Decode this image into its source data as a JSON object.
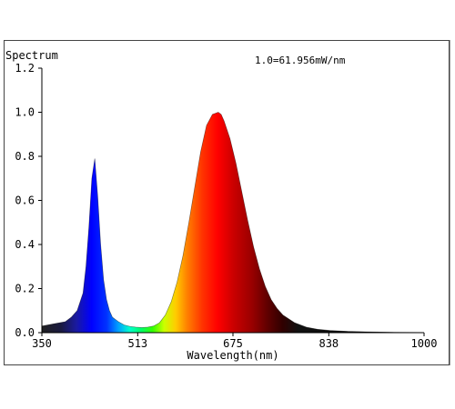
{
  "chart_data": {
    "type": "area",
    "title": "Spectrum",
    "scale_note": "1.0=61.956mW/nm",
    "xlabel": "Wavelength(nm)",
    "ylabel": "Spectrum",
    "xlim": [
      350,
      1000
    ],
    "ylim": [
      0,
      1.2
    ],
    "x_ticks": [
      "350",
      "513",
      "675",
      "838",
      "1000"
    ],
    "y_ticks": [
      "0.0",
      "0.2",
      "0.4",
      "0.6",
      "0.8",
      "1.0",
      "1.2"
    ],
    "grid": false,
    "x": [
      350,
      370,
      390,
      400,
      410,
      420,
      425,
      430,
      435,
      440,
      445,
      450,
      455,
      460,
      465,
      470,
      480,
      490,
      500,
      510,
      520,
      530,
      540,
      550,
      560,
      570,
      580,
      590,
      600,
      610,
      620,
      630,
      640,
      650,
      655,
      660,
      670,
      680,
      690,
      700,
      710,
      720,
      730,
      740,
      750,
      760,
      780,
      800,
      820,
      840,
      870,
      900,
      950,
      1000
    ],
    "values": [
      0.03,
      0.04,
      0.05,
      0.07,
      0.1,
      0.18,
      0.3,
      0.48,
      0.7,
      0.79,
      0.62,
      0.4,
      0.24,
      0.15,
      0.1,
      0.07,
      0.05,
      0.035,
      0.028,
      0.025,
      0.023,
      0.025,
      0.03,
      0.045,
      0.08,
      0.14,
      0.23,
      0.35,
      0.5,
      0.66,
      0.82,
      0.94,
      0.99,
      1.0,
      0.99,
      0.96,
      0.88,
      0.77,
      0.64,
      0.51,
      0.39,
      0.29,
      0.21,
      0.15,
      0.11,
      0.08,
      0.045,
      0.025,
      0.015,
      0.01,
      0.006,
      0.004,
      0.002,
      0.001
    ]
  }
}
